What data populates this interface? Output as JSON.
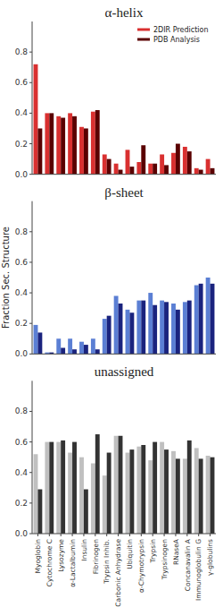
{
  "chart_data": [
    {
      "type": "bar",
      "title": "α-helix",
      "categories": [
        "Myoglobin",
        "Cytochrome C",
        "Lysozyme",
        "α-Lactalbumin",
        "Insulin",
        "Fibrinogen",
        "Trypsin Inhib.",
        "Carbonic Anhydrase",
        "Ubiquitin",
        "α-Chymotrypsin",
        "Trypsin",
        "Trypsinogen",
        "RNaseA",
        "Concanavalin A",
        "Immunoglobulin G",
        "γ-globulins"
      ],
      "series": [
        {
          "name": "2DIR Prediction",
          "color": "#d93030",
          "values": [
            0.72,
            0.4,
            0.38,
            0.4,
            0.31,
            0.41,
            0.13,
            0.07,
            0.16,
            0.08,
            0.07,
            0.13,
            0.14,
            0.18,
            0.04,
            0.1
          ]
        },
        {
          "name": "PDB Analysis",
          "color": "#5a0000",
          "values": [
            0.3,
            0.4,
            0.37,
            0.38,
            0.3,
            0.42,
            0.1,
            0.03,
            0.05,
            0.19,
            0.07,
            0.06,
            0.2,
            0.15,
            0.03,
            0.04
          ]
        }
      ],
      "ylim": [
        0,
        1.0
      ],
      "yticks": [
        {
          "value": 0,
          "label": "0.0"
        },
        0.2,
        0.4,
        0.6,
        0.8
      ],
      "legend": "upper-right",
      "grid": false,
      "tick_labels": "y"
    },
    {
      "type": "bar",
      "title": "β-sheet",
      "y_label": "Fraction Sec. Structure",
      "categories": [
        "Myoglobin",
        "Cytochrome C",
        "Lysozyme",
        "α-Lactalbumin",
        "Insulin",
        "Fibrinogen",
        "Trypsin Inhib.",
        "Carbonic Anhydrase",
        "Ubiquitin",
        "α-Chymotrypsin",
        "Trypsin",
        "Trypsinogen",
        "RNaseA",
        "Concanavalin A",
        "Immunoglobulin G",
        "γ-globulins"
      ],
      "series": [
        {
          "color": "#5b7fd4",
          "values": [
            0.19,
            0.01,
            0.1,
            0.1,
            0.08,
            0.1,
            0.23,
            0.38,
            0.29,
            0.35,
            0.4,
            0.35,
            0.33,
            0.34,
            0.45,
            0.5
          ]
        },
        {
          "color": "#1a237e",
          "values": [
            0.14,
            0.01,
            0.04,
            0.03,
            0.06,
            0.03,
            0.25,
            0.33,
            0.27,
            0.35,
            0.32,
            0.34,
            0.29,
            0.35,
            0.46,
            0.46
          ]
        }
      ],
      "ylim": [
        0,
        1.0
      ],
      "yticks": [
        {
          "value": 0,
          "label": "0.0"
        },
        0.2,
        0.4,
        0.6,
        0.8
      ],
      "grid": false,
      "tick_labels": "y"
    },
    {
      "type": "bar",
      "title": "unassigned",
      "categories": [
        "Myoglobin",
        "Cytochrome C",
        "Lysozyme",
        "α-Lactalbumin",
        "Insulin",
        "Fibrinogen",
        "Trypsin Inhib.",
        "Carbonic Anhydrase",
        "Ubiquitin",
        "α-Chymotrypsin",
        "Trypsin",
        "Trypsinogen",
        "RNaseA",
        "Concanavalin A",
        "Immunoglobulin G",
        "γ-globulins"
      ],
      "series": [
        {
          "color": "#c0c0c0",
          "values": [
            0.52,
            0.6,
            0.6,
            0.53,
            0.5,
            0.46,
            0.38,
            0.64,
            0.53,
            0.57,
            0.48,
            0.6,
            0.54,
            0.49,
            0.56,
            0.51
          ]
        },
        {
          "color": "#333333",
          "values": [
            0.29,
            0.6,
            0.61,
            0.6,
            0.29,
            0.65,
            0.53,
            0.64,
            0.55,
            0.58,
            0.6,
            0.55,
            0.49,
            0.61,
            0.49,
            0.5
          ]
        }
      ],
      "ylim": [
        0,
        1.0
      ],
      "yticks": [
        {
          "value": 0,
          "label": "0.0"
        },
        0.2,
        0.4,
        0.6,
        0.8
      ],
      "grid": false
    }
  ]
}
